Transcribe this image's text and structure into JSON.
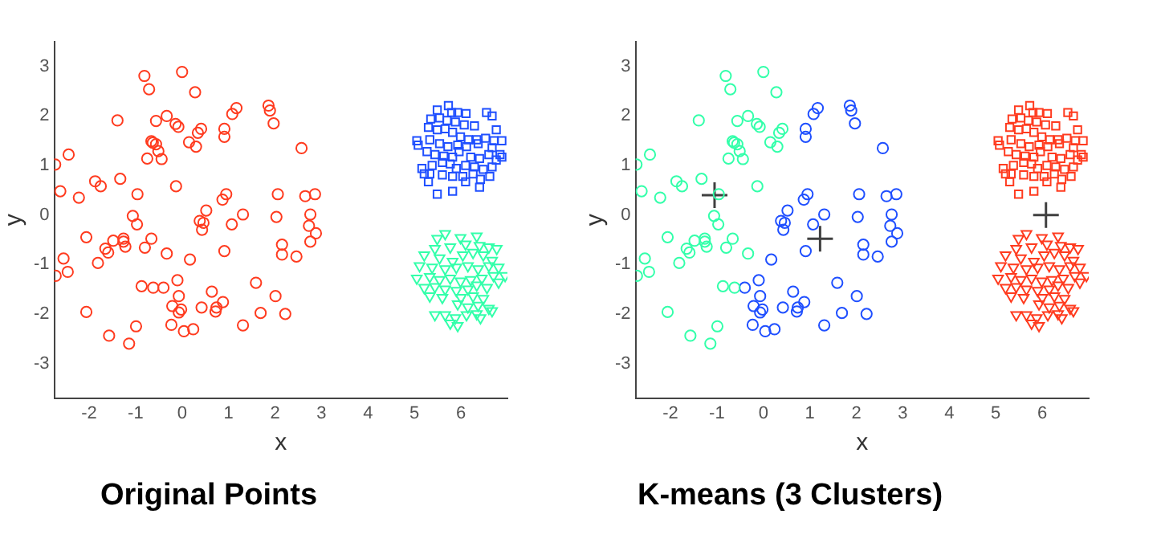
{
  "chart_data": [
    {
      "type": "scatter",
      "title": "Original Points",
      "xlabel": "x",
      "ylabel": "y",
      "xlim": [
        -2.75,
        7
      ],
      "ylim": [
        -3.7,
        3.5
      ],
      "xticks": [
        -2,
        -1,
        0,
        1,
        2,
        3,
        4,
        5,
        6
      ],
      "yticks": [
        -3,
        -2,
        -1,
        0,
        1,
        2,
        3
      ],
      "grid": false,
      "legend": false,
      "series": [
        {
          "color": "#ff3b1f",
          "marker": "circle",
          "x": [
            -0.81,
            0,
            -0.71,
            0.28,
            -1.39,
            -0.56,
            -0.33,
            -0.14,
            -0.08,
            0.41,
            0.34,
            -0.66,
            -0.63,
            -0.56,
            -0.51,
            -0.75,
            -0.44,
            0.15,
            0.3,
            -2.73,
            -2.44,
            -2.62,
            -2.22,
            -1.87,
            -1.75,
            -1.33,
            -0.96,
            -0.13,
            -1.06,
            -0.97,
            -2.06,
            -1.48,
            -1.26,
            -1.26,
            -1.22,
            -1.65,
            -1.59,
            -0.8,
            -0.66,
            -0.33,
            -1.81,
            -2.55,
            -2.46,
            -2.72,
            -0.87,
            -0.62,
            -2.06,
            -0.99,
            -1.57,
            -1.14,
            1.08,
            1.17,
            1.86,
            1.89,
            1.97,
            0.91,
            0.91,
            2.57,
            0.95,
            0.87,
            0.52,
            0.38,
            0.46,
            0.43,
            1.07,
            1.31,
            2.06,
            2.03,
            2.65,
            2.86,
            2.76,
            2.73,
            2.88,
            2.76,
            2.15,
            2.15,
            2.46,
            0.17,
            0.91,
            -0.4,
            -0.1,
            -0.07,
            0.64,
            -0.21,
            -0.07,
            -0.02,
            0.42,
            0.74,
            0.72,
            0.88,
            1.59,
            2.01,
            1.69,
            2.22,
            -0.23,
            0.04,
            0.24,
            1.31
          ],
          "values": [
            2.81,
            2.89,
            2.54,
            2.48,
            1.91,
            1.9,
            2.0,
            1.84,
            1.78,
            1.74,
            1.66,
            1.49,
            1.46,
            1.43,
            1.29,
            1.14,
            1.13,
            1.47,
            1.38,
            1.02,
            1.22,
            0.48,
            0.35,
            0.68,
            0.58,
            0.73,
            0.42,
            0.58,
            -0.02,
            -0.19,
            -0.45,
            -0.52,
            -0.48,
            -0.54,
            -0.64,
            -0.68,
            -0.76,
            -0.66,
            -0.48,
            -0.78,
            -0.97,
            -0.88,
            -1.15,
            -1.23,
            -1.44,
            -1.47,
            -1.96,
            -2.25,
            -2.44,
            -2.6,
            2.04,
            2.16,
            2.21,
            2.11,
            1.85,
            1.74,
            1.58,
            1.35,
            0.42,
            0.31,
            0.09,
            -0.12,
            -0.16,
            -0.3,
            -0.19,
            0.01,
            0.42,
            -0.04,
            0.38,
            0.42,
            0.01,
            -0.22,
            -0.37,
            -0.54,
            -0.6,
            -0.8,
            -0.84,
            -0.9,
            -0.73,
            -1.47,
            -1.32,
            -1.64,
            -1.55,
            -1.84,
            -1.97,
            -1.91,
            -1.87,
            -1.87,
            -1.95,
            -1.76,
            -1.37,
            -1.64,
            -1.98,
            -2.0,
            -2.22,
            -2.35,
            -2.31,
            -2.23
          ]
        },
        {
          "color": "#1f4fff",
          "marker": "square",
          "x": [
            5.49,
            5.73,
            5.8,
            5.93,
            6.11,
            6.55,
            6.67,
            5.35,
            5.54,
            5.7,
            5.88,
            6.07,
            6.29,
            6.76,
            5.3,
            5.49,
            5.66,
            5.82,
            5.99,
            6.16,
            6.34,
            6.53,
            6.71,
            6.88,
            5.05,
            5.08,
            5.33,
            5.54,
            5.72,
            5.93,
            6.12,
            6.37,
            6.67,
            6.84,
            6.88,
            5.27,
            5.44,
            5.63,
            5.82,
            5.96,
            6.21,
            6.4,
            6.6,
            6.76,
            5.16,
            5.21,
            5.38,
            5.6,
            5.77,
            5.9,
            6.1,
            6.29,
            6.48,
            6.67,
            5.33,
            5.6,
            5.82,
            6.04,
            6.26,
            6.42,
            6.62,
            5.3,
            6.1,
            6.4,
            5.49,
            5.82
          ],
          "values": [
            2.12,
            2.21,
            2.07,
            2.07,
            2.05,
            2.07,
            2.0,
            1.94,
            1.96,
            1.91,
            1.88,
            1.82,
            1.8,
            1.72,
            1.77,
            1.72,
            1.74,
            1.67,
            1.58,
            1.52,
            1.52,
            1.55,
            1.5,
            1.5,
            1.5,
            1.41,
            1.52,
            1.44,
            1.38,
            1.41,
            1.38,
            1.44,
            1.36,
            1.22,
            1.17,
            1.28,
            1.22,
            1.19,
            1.17,
            1.28,
            1.17,
            1.14,
            1.22,
            1.11,
            0.94,
            0.83,
            1.0,
            1.06,
            1.03,
            0.94,
            1.0,
            0.97,
            0.92,
            0.97,
            0.83,
            0.81,
            0.78,
            0.78,
            0.83,
            0.72,
            0.78,
            0.67,
            0.67,
            0.56,
            0.42,
            0.48
          ]
        },
        {
          "color": "#33ffaa",
          "marker": "triangle",
          "x": [
            5.49,
            5.66,
            5.99,
            6.34,
            5.44,
            5.77,
            6.1,
            6.4,
            6.6,
            6.77,
            5.21,
            5.54,
            5.82,
            6.04,
            6.26,
            6.48,
            6.67,
            5.11,
            5.38,
            5.66,
            5.9,
            6.15,
            6.37,
            6.6,
            6.81,
            5.05,
            5.33,
            5.54,
            5.77,
            5.99,
            6.21,
            6.45,
            6.7,
            6.95,
            5.21,
            5.44,
            5.66,
            5.9,
            6.15,
            6.34,
            6.56,
            6.81,
            5.33,
            5.6,
            6.0,
            6.26,
            6.48,
            5.93,
            6.15,
            6.37,
            6.6,
            5.44,
            5.66,
            5.88,
            6.12,
            6.34,
            6.67,
            5.77,
            5.93,
            6.42
          ],
          "values": [
            -0.48,
            -0.38,
            -0.46,
            -0.43,
            -0.68,
            -0.65,
            -0.59,
            -0.62,
            -0.65,
            -0.68,
            -0.81,
            -0.87,
            -0.94,
            -0.81,
            -0.76,
            -0.81,
            -0.92,
            -1.03,
            -1.06,
            -1.09,
            -1.06,
            -1.03,
            -1.09,
            -1.03,
            -1.06,
            -1.28,
            -1.25,
            -1.31,
            -1.28,
            -1.34,
            -1.31,
            -1.28,
            -1.23,
            -1.23,
            -1.47,
            -1.45,
            -1.5,
            -1.53,
            -1.5,
            -1.42,
            -1.47,
            -1.36,
            -1.64,
            -1.67,
            -1.67,
            -1.64,
            -1.69,
            -1.8,
            -1.86,
            -1.83,
            -1.89,
            -2.02,
            -2.02,
            -2.08,
            -2.02,
            -2.0,
            -1.94,
            -2.19,
            -2.24,
            -2.08
          ]
        }
      ]
    },
    {
      "type": "scatter",
      "title": "K-means (3 Clusters)",
      "xlabel": "x",
      "ylabel": "y",
      "xlim": [
        -2.75,
        7
      ],
      "ylim": [
        -3.7,
        3.5
      ],
      "xticks": [
        -2,
        -1,
        0,
        1,
        2,
        3,
        4,
        5,
        6
      ],
      "yticks": [
        -3,
        -2,
        -1,
        0,
        1,
        2,
        3
      ],
      "grid": false,
      "legend": false,
      "series": [
        {
          "color": "#33ffaa",
          "marker": "circle",
          "x": [
            -0.81,
            0,
            -0.71,
            0.28,
            -1.39,
            -0.56,
            -0.33,
            -0.14,
            -0.08,
            0.41,
            0.34,
            -0.66,
            -0.63,
            -0.56,
            -0.51,
            -0.75,
            -0.44,
            0.15,
            0.3,
            -2.73,
            -2.44,
            -2.62,
            -2.22,
            -1.87,
            -1.75,
            -1.33,
            -0.96,
            -0.13,
            -1.06,
            -0.97,
            -2.06,
            -1.48,
            -1.26,
            -1.26,
            -1.22,
            -1.65,
            -1.59,
            -0.8,
            -0.66,
            -0.33,
            -1.81,
            -2.55,
            -2.46,
            -2.72,
            -0.87,
            -0.62,
            -2.06,
            -0.99,
            -1.57,
            -1.14
          ],
          "values": [
            2.81,
            2.89,
            2.54,
            2.48,
            1.91,
            1.9,
            2.0,
            1.84,
            1.78,
            1.74,
            1.66,
            1.49,
            1.46,
            1.43,
            1.29,
            1.14,
            1.13,
            1.47,
            1.38,
            1.02,
            1.22,
            0.48,
            0.35,
            0.68,
            0.58,
            0.73,
            0.42,
            0.58,
            -0.02,
            -0.19,
            -0.45,
            -0.52,
            -0.48,
            -0.54,
            -0.64,
            -0.68,
            -0.76,
            -0.66,
            -0.48,
            -0.78,
            -0.97,
            -0.88,
            -1.15,
            -1.23,
            -1.44,
            -1.47,
            -1.96,
            -2.25,
            -2.44,
            -2.6
          ]
        },
        {
          "color": "#1f4fff",
          "marker": "circle",
          "x": [
            1.08,
            1.17,
            1.86,
            1.89,
            1.97,
            0.91,
            0.91,
            2.57,
            0.95,
            0.87,
            0.52,
            0.38,
            0.46,
            0.43,
            1.07,
            1.31,
            2.06,
            2.03,
            2.65,
            2.86,
            2.76,
            2.73,
            2.88,
            2.76,
            2.15,
            2.15,
            2.46,
            0.17,
            0.91,
            -0.4,
            -0.1,
            -0.07,
            0.64,
            -0.21,
            -0.07,
            -0.02,
            0.42,
            0.74,
            0.72,
            0.88,
            1.59,
            2.01,
            1.69,
            2.22,
            -0.23,
            0.04,
            0.24,
            1.31
          ],
          "values": [
            2.04,
            2.16,
            2.21,
            2.11,
            1.85,
            1.74,
            1.58,
            1.35,
            0.42,
            0.31,
            0.09,
            -0.12,
            -0.16,
            -0.3,
            -0.19,
            0.01,
            0.42,
            -0.04,
            0.38,
            0.42,
            0.01,
            -0.22,
            -0.37,
            -0.54,
            -0.6,
            -0.8,
            -0.84,
            -0.9,
            -0.73,
            -1.47,
            -1.32,
            -1.64,
            -1.55,
            -1.84,
            -1.97,
            -1.91,
            -1.87,
            -1.87,
            -1.95,
            -1.76,
            -1.37,
            -1.64,
            -1.98,
            -2.0,
            -2.22,
            -2.35,
            -2.31,
            -2.23
          ]
        },
        {
          "color": "#ff3b1f",
          "marker": "square",
          "x": [
            5.49,
            5.73,
            5.8,
            5.93,
            6.11,
            6.55,
            6.67,
            5.35,
            5.54,
            5.7,
            5.88,
            6.07,
            6.29,
            6.76,
            5.3,
            5.49,
            5.66,
            5.82,
            5.99,
            6.16,
            6.34,
            6.53,
            6.71,
            6.88,
            5.05,
            5.08,
            5.33,
            5.54,
            5.72,
            5.93,
            6.12,
            6.37,
            6.67,
            6.84,
            6.88,
            5.27,
            5.44,
            5.63,
            5.82,
            5.96,
            6.21,
            6.4,
            6.6,
            6.76,
            5.16,
            5.21,
            5.38,
            5.6,
            5.77,
            5.9,
            6.1,
            6.29,
            6.48,
            6.67,
            5.33,
            5.6,
            5.82,
            6.04,
            6.26,
            6.42,
            6.62,
            5.3,
            6.1,
            6.4,
            5.49,
            5.82
          ],
          "values": [
            2.12,
            2.21,
            2.07,
            2.07,
            2.05,
            2.07,
            2.0,
            1.94,
            1.96,
            1.91,
            1.88,
            1.82,
            1.8,
            1.72,
            1.77,
            1.72,
            1.74,
            1.67,
            1.58,
            1.52,
            1.52,
            1.55,
            1.5,
            1.5,
            1.5,
            1.41,
            1.52,
            1.44,
            1.38,
            1.41,
            1.38,
            1.44,
            1.36,
            1.22,
            1.17,
            1.28,
            1.22,
            1.19,
            1.17,
            1.28,
            1.17,
            1.14,
            1.22,
            1.11,
            0.94,
            0.83,
            1.0,
            1.06,
            1.03,
            0.94,
            1.0,
            0.97,
            0.92,
            0.97,
            0.83,
            0.81,
            0.78,
            0.78,
            0.83,
            0.72,
            0.78,
            0.67,
            0.67,
            0.56,
            0.42,
            0.48
          ]
        },
        {
          "color": "#ff3b1f",
          "marker": "triangle",
          "x": [
            5.49,
            5.66,
            5.99,
            6.34,
            5.44,
            5.77,
            6.1,
            6.4,
            6.6,
            6.77,
            5.21,
            5.54,
            5.82,
            6.04,
            6.26,
            6.48,
            6.67,
            5.11,
            5.38,
            5.66,
            5.9,
            6.15,
            6.37,
            6.6,
            6.81,
            5.05,
            5.33,
            5.54,
            5.77,
            5.99,
            6.21,
            6.45,
            6.7,
            6.95,
            5.21,
            5.44,
            5.66,
            5.9,
            6.15,
            6.34,
            6.56,
            6.81,
            5.33,
            5.6,
            6.0,
            6.26,
            6.48,
            5.93,
            6.15,
            6.37,
            6.6,
            5.44,
            5.66,
            5.88,
            6.12,
            6.34,
            6.67,
            5.77,
            5.93,
            6.42
          ],
          "values": [
            -0.48,
            -0.38,
            -0.46,
            -0.43,
            -0.68,
            -0.65,
            -0.59,
            -0.62,
            -0.65,
            -0.68,
            -0.81,
            -0.87,
            -0.94,
            -0.81,
            -0.76,
            -0.81,
            -0.92,
            -1.03,
            -1.06,
            -1.09,
            -1.06,
            -1.03,
            -1.09,
            -1.03,
            -1.06,
            -1.28,
            -1.25,
            -1.31,
            -1.28,
            -1.34,
            -1.31,
            -1.28,
            -1.23,
            -1.23,
            -1.47,
            -1.45,
            -1.5,
            -1.53,
            -1.5,
            -1.42,
            -1.47,
            -1.36,
            -1.64,
            -1.67,
            -1.67,
            -1.64,
            -1.69,
            -1.8,
            -1.86,
            -1.83,
            -1.89,
            -2.02,
            -2.02,
            -2.08,
            -2.02,
            -2.0,
            -1.94,
            -2.19,
            -2.24,
            -2.08
          ]
        },
        {
          "color": "#404040",
          "marker": "cross",
          "x": [
            -1.05,
            1.22,
            6.08
          ],
          "values": [
            0.4,
            -0.48,
            0.0
          ]
        }
      ]
    }
  ]
}
